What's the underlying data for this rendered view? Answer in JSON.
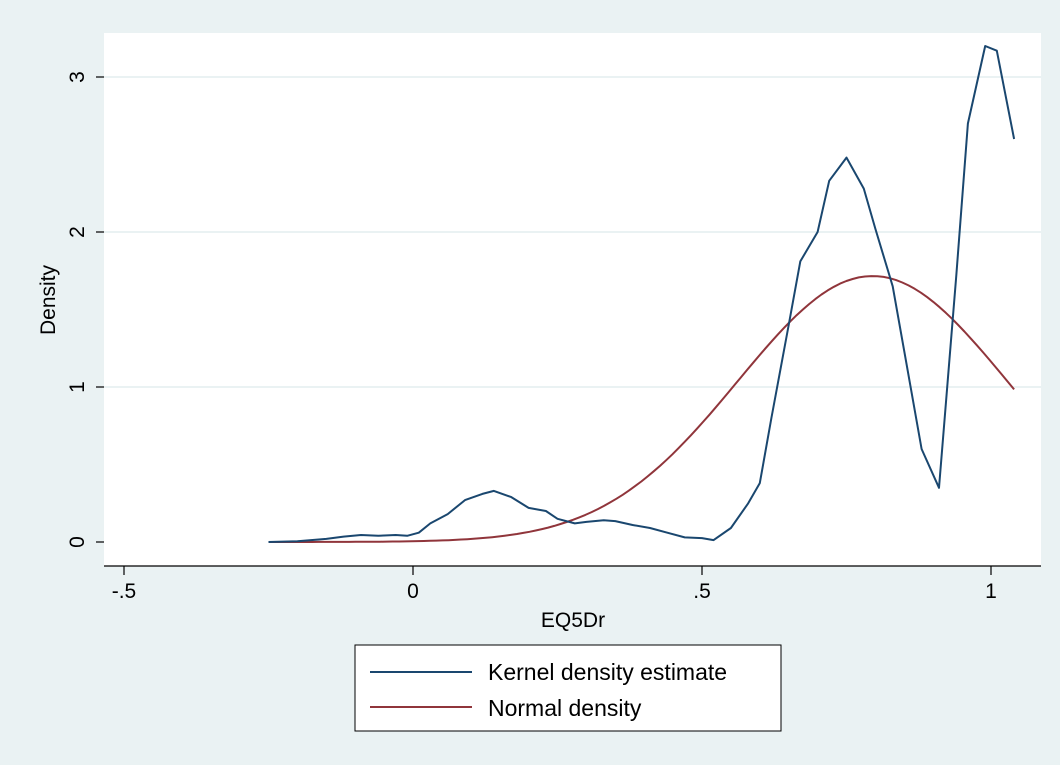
{
  "chart_data": {
    "type": "line",
    "xlabel": "EQ5Dr",
    "ylabel": "Density",
    "xlim": [
      -0.55,
      1.05
    ],
    "ylim": [
      -0.02,
      3.4
    ],
    "x_ticks": [
      -0.5,
      0,
      0.5,
      1
    ],
    "x_tick_labels": [
      "-.5",
      "0",
      ".5",
      "1"
    ],
    "y_ticks": [
      0,
      1,
      2,
      3
    ],
    "y_tick_labels": [
      "0",
      "1",
      "2",
      "3"
    ],
    "grid": true,
    "legend_position": "bottom",
    "series": [
      {
        "name": "Kernel density estimate",
        "color": "#1a476f",
        "points": [
          [
            -0.25,
            0.0
          ],
          [
            -0.2,
            0.005
          ],
          [
            -0.15,
            0.02
          ],
          [
            -0.12,
            0.035
          ],
          [
            -0.09,
            0.045
          ],
          [
            -0.06,
            0.04
          ],
          [
            -0.03,
            0.045
          ],
          [
            -0.01,
            0.04
          ],
          [
            0.01,
            0.06
          ],
          [
            0.03,
            0.12
          ],
          [
            0.06,
            0.18
          ],
          [
            0.09,
            0.27
          ],
          [
            0.12,
            0.31
          ],
          [
            0.14,
            0.33
          ],
          [
            0.17,
            0.29
          ],
          [
            0.2,
            0.22
          ],
          [
            0.23,
            0.2
          ],
          [
            0.25,
            0.15
          ],
          [
            0.28,
            0.12
          ],
          [
            0.3,
            0.13
          ],
          [
            0.33,
            0.14
          ],
          [
            0.35,
            0.135
          ],
          [
            0.38,
            0.11
          ],
          [
            0.41,
            0.09
          ],
          [
            0.44,
            0.06
          ],
          [
            0.47,
            0.03
          ],
          [
            0.5,
            0.025
          ],
          [
            0.52,
            0.012
          ],
          [
            0.55,
            0.09
          ],
          [
            0.58,
            0.25
          ],
          [
            0.6,
            0.38
          ],
          [
            0.62,
            0.8
          ],
          [
            0.65,
            1.4
          ],
          [
            0.67,
            1.81
          ],
          [
            0.7,
            2.0
          ],
          [
            0.72,
            2.33
          ],
          [
            0.75,
            2.48
          ],
          [
            0.78,
            2.28
          ],
          [
            0.8,
            2.02
          ],
          [
            0.83,
            1.65
          ],
          [
            0.85,
            1.23
          ],
          [
            0.88,
            0.6
          ],
          [
            0.91,
            0.35
          ],
          [
            0.94,
            1.72
          ],
          [
            0.96,
            2.7
          ],
          [
            0.99,
            3.2
          ],
          [
            1.01,
            3.17
          ],
          [
            1.04,
            2.6
          ]
        ]
      },
      {
        "name": "Normal density",
        "color": "#90353b",
        "mean": 0.795,
        "sd": 0.2325,
        "x_range": [
          -0.25,
          1.04
        ]
      }
    ]
  }
}
